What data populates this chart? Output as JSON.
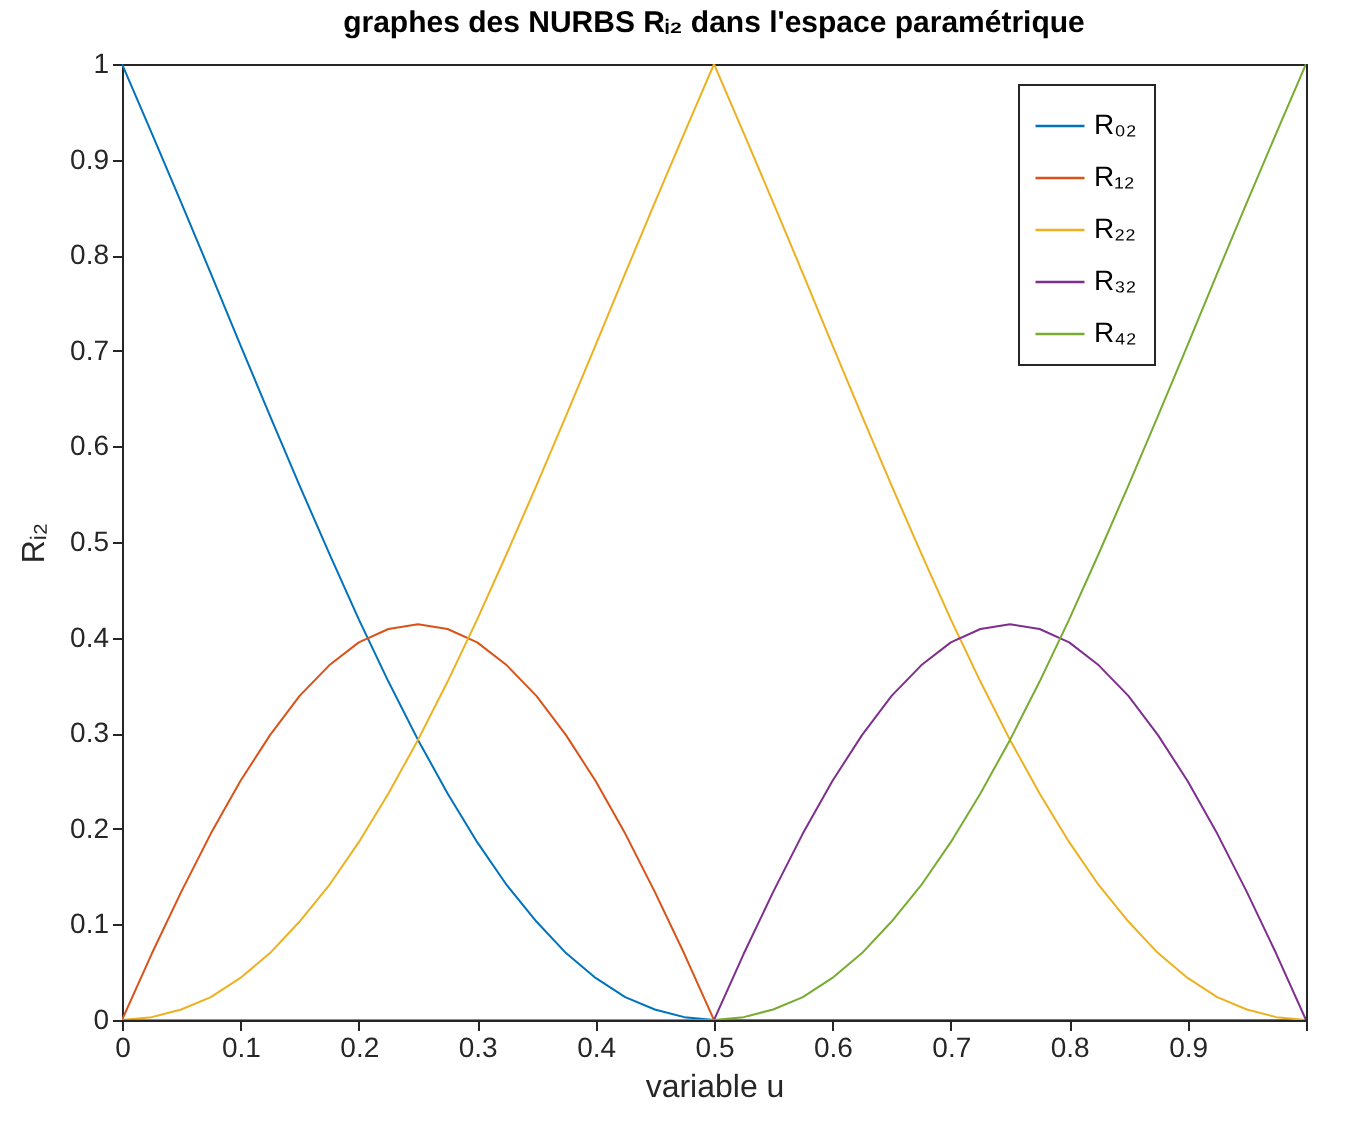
{
  "chart_data": {
    "type": "line",
    "title": "graphes des NURBS Rᵢ₂ dans l'espace paramétrique",
    "xlabel": "variable u",
    "ylabel": "Rᵢ₂",
    "x": [
      0,
      0.025,
      0.05,
      0.075,
      0.1,
      0.125,
      0.15,
      0.175,
      0.2,
      0.225,
      0.25,
      0.275,
      0.3,
      0.325,
      0.35,
      0.375,
      0.4,
      0.425,
      0.45,
      0.475,
      0.5,
      0.525,
      0.55,
      0.575,
      0.6,
      0.625,
      0.65,
      0.675,
      0.7,
      0.725,
      0.75,
      0.775,
      0.8,
      0.825,
      0.85,
      0.875,
      0.9,
      0.925,
      0.95,
      0.975,
      1
    ],
    "series": [
      {
        "name": "R₀₂",
        "color": "#0072bd",
        "values": [
          1,
          0.928,
          0.855,
          0.781,
          0.706,
          0.632,
          0.559,
          0.488,
          0.419,
          0.354,
          0.293,
          0.237,
          0.186,
          0.141,
          0.103,
          0.07,
          0.044,
          0.024,
          0.011,
          0.003,
          0,
          null,
          null,
          null,
          null,
          null,
          null,
          null,
          null,
          null,
          null,
          null,
          null,
          null,
          null,
          null,
          null,
          null,
          null,
          null,
          null
        ]
      },
      {
        "name": "R₁₂",
        "color": "#d95319",
        "values": [
          0,
          0.069,
          0.134,
          0.195,
          0.25,
          0.298,
          0.339,
          0.371,
          0.395,
          0.409,
          0.414,
          0.409,
          0.395,
          0.371,
          0.339,
          0.298,
          0.25,
          0.195,
          0.134,
          0.069,
          0,
          0,
          0,
          0,
          0,
          0,
          0,
          0,
          0,
          0,
          0,
          0,
          0,
          0,
          0,
          0,
          0,
          0,
          0,
          0,
          0
        ]
      },
      {
        "name": "R₂₂",
        "color": "#edb120",
        "values": [
          0,
          0.003,
          0.011,
          0.024,
          0.044,
          0.07,
          0.103,
          0.141,
          0.186,
          0.237,
          0.293,
          0.354,
          0.419,
          0.488,
          0.559,
          0.632,
          0.706,
          0.781,
          0.855,
          0.928,
          1,
          0.928,
          0.855,
          0.781,
          0.706,
          0.632,
          0.559,
          0.488,
          0.419,
          0.354,
          0.293,
          0.237,
          0.186,
          0.141,
          0.103,
          0.07,
          0.044,
          0.024,
          0.011,
          0.003,
          0
        ]
      },
      {
        "name": "R₃₂",
        "color": "#7e2f8e",
        "values": [
          null,
          null,
          null,
          null,
          null,
          null,
          null,
          null,
          null,
          null,
          null,
          null,
          null,
          null,
          null,
          null,
          null,
          null,
          null,
          null,
          0,
          0.069,
          0.134,
          0.195,
          0.25,
          0.298,
          0.339,
          0.371,
          0.395,
          0.409,
          0.414,
          0.409,
          0.395,
          0.371,
          0.339,
          0.298,
          0.25,
          0.195,
          0.134,
          0.069,
          0
        ]
      },
      {
        "name": "R₄₂",
        "color": "#77ac30",
        "values": [
          0,
          0,
          0,
          0,
          0,
          0,
          0,
          0,
          0,
          0,
          0,
          0,
          0,
          0,
          0,
          0,
          0,
          0,
          0,
          0,
          0,
          0.003,
          0.011,
          0.024,
          0.044,
          0.07,
          0.103,
          0.141,
          0.186,
          0.237,
          0.293,
          0.354,
          0.419,
          0.488,
          0.559,
          0.632,
          0.706,
          0.781,
          0.855,
          0.928,
          1
        ]
      }
    ],
    "xlim": [
      0,
      1
    ],
    "xticks": [
      0,
      0.1,
      0.2,
      0.3,
      0.4,
      0.5,
      0.6,
      0.7,
      0.8,
      0.9,
      {
        "value": 1,
        "label": null
      }
    ],
    "ylim": [
      0,
      1
    ],
    "yticks": [
      0,
      0.1,
      0.2,
      0.3,
      0.4,
      0.5,
      0.6,
      0.7,
      0.8,
      0.9,
      1
    ],
    "legend": "top right"
  }
}
